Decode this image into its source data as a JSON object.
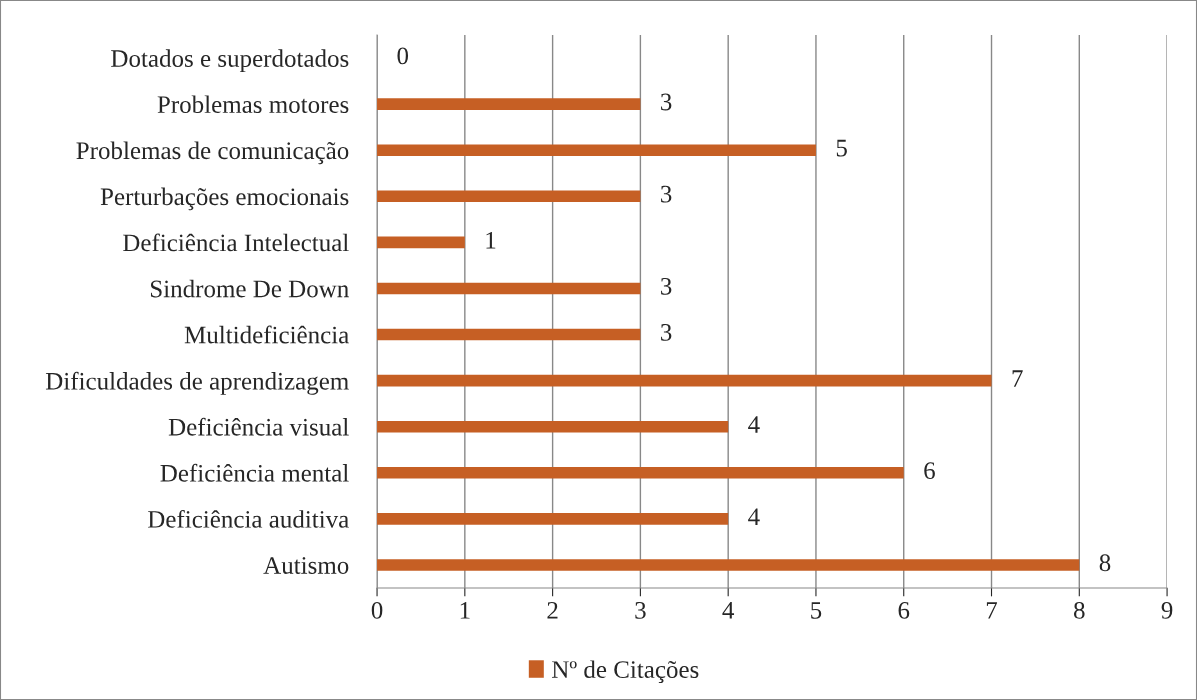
{
  "chart_data": {
    "type": "bar",
    "orientation": "horizontal",
    "categories": [
      "Dotados e superdotados",
      "Problemas motores",
      "Problemas de comunicação",
      "Perturbações emocionais",
      "Deficiência Intelectual",
      "Sindrome De Down",
      "Multideficiência",
      "Dificuldades de aprendizagem",
      "Deficiência visual",
      "Deficiência mental",
      "Deficiência auditiva",
      "Autismo"
    ],
    "series": [
      {
        "name": "Nº de Citações",
        "color": "#c65f24",
        "values": [
          0,
          3,
          5,
          3,
          1,
          3,
          3,
          7,
          4,
          6,
          4,
          8
        ]
      }
    ],
    "xlim": [
      0,
      9
    ],
    "xticks": [
      0,
      1,
      2,
      3,
      4,
      5,
      6,
      7,
      8,
      9
    ],
    "grid": "x",
    "legend": "bottom",
    "data_labels": true
  }
}
